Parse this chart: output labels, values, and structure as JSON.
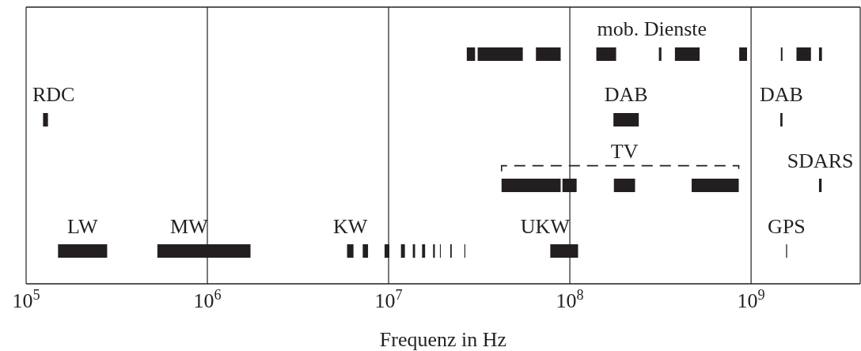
{
  "chart_data": {
    "type": "bar",
    "orientation": "horizontal",
    "xlabel": "Frequenz in Hz",
    "log": "x",
    "grid": "x",
    "legend": false,
    "categories": [
      null,
      null,
      null,
      null
    ],
    "xlim": [
      100000,
      4000000000
    ],
    "xticks": [
      {
        "value": 100000,
        "label": "10$^{5}$"
      },
      {
        "value": 1000000,
        "label": "10$^{6}$"
      },
      {
        "value": 10000000,
        "label": "10$^{7}$"
      },
      {
        "value": 100000000,
        "label": "10$^{8}$"
      },
      {
        "value": 1000000000,
        "label": "10$^{9}$"
      }
    ],
    "series": [
      {
        "color": "#231f20",
        "values": [
          null,
          null,
          47000000,
          null
        ],
        "base": [
          null,
          null,
          42000000,
          null
        ]
      },
      {
        "color": "#231f20",
        "values": [
          null,
          null,
          18000000,
          null
        ],
        "base": [
          null,
          null,
          91000000,
          null
        ]
      },
      {
        "name": "TV",
        "line_style": "dashed",
        "color": "#231f20",
        "values": [
          null,
          null,
          54000000,
          null
        ],
        "base": [
          null,
          null,
          175000000,
          null
        ]
      },
      {
        "color": "#231f20",
        "values": [
          null,
          null,
          385000000,
          null
        ],
        "base": [
          null,
          null,
          470000000,
          null
        ]
      },
      {
        "color": "#231f20",
        "values": [
          3000000,
          null,
          null,
          null
        ],
        "base": [
          27000000,
          null,
          null,
          null
        ]
      },
      {
        "color": "#231f20",
        "values": [
          24000000,
          null,
          null,
          null
        ],
        "base": [
          31000000,
          null,
          null,
          null
        ]
      },
      {
        "color": "#231f20",
        "values": [
          24000000,
          null,
          null,
          null
        ],
        "base": [
          65000000,
          null,
          null,
          null
        ]
      },
      {
        "name": "mob. Dienste",
        "color": "#231f20",
        "values": [
          40000000,
          null,
          null,
          null
        ],
        "base": [
          140000000,
          null,
          null,
          null
        ]
      },
      {
        "color": "#231f20",
        "values": [
          10000000,
          null,
          null,
          null
        ],
        "base": [
          310000000,
          null,
          null,
          null
        ]
      },
      {
        "color": "#231f20",
        "values": [
          140000000,
          null,
          null,
          null
        ],
        "base": [
          380000000,
          null,
          null,
          null
        ]
      },
      {
        "color": "#231f20",
        "values": [
          90000000,
          null,
          null,
          null
        ],
        "base": [
          860000000,
          null,
          null,
          null
        ]
      },
      {
        "color": "#231f20",
        "values": [
          30000000,
          null,
          null,
          null
        ],
        "base": [
          1460000000,
          null,
          null,
          null
        ]
      },
      {
        "color": "#231f20",
        "values": [
          360000000,
          null,
          null,
          null
        ],
        "base": [
          1780000000,
          null,
          null,
          null
        ]
      },
      {
        "color": "#231f20",
        "values": [
          90000000,
          null,
          null,
          null
        ],
        "base": [
          2370000000,
          null,
          null,
          null
        ]
      },
      {
        "name": "RDC",
        "color": "#231f20",
        "values": [
          null,
          8000,
          null,
          null
        ],
        "base": [
          null,
          124000,
          null,
          null
        ]
      },
      {
        "name": "DAB",
        "color": "#231f20",
        "values": [
          null,
          66000000,
          null,
          null
        ],
        "base": [
          null,
          174000000,
          null,
          null
        ]
      },
      {
        "name": "DAB",
        "color": "#231f20",
        "values": [
          null,
          40000000,
          null,
          null
        ],
        "base": [
          null,
          1450000000,
          null,
          null
        ]
      },
      {
        "name": "SDARS",
        "color": "#231f20",
        "values": [
          null,
          null,
          80000000,
          null
        ],
        "base": [
          null,
          null,
          2370000000,
          null
        ]
      },
      {
        "name": "LW",
        "color": "#231f20",
        "values": [
          null,
          null,
          null,
          130000
        ],
        "base": [
          null,
          null,
          null,
          150000
        ]
      },
      {
        "name": "MW",
        "color": "#231f20",
        "values": [
          null,
          null,
          null,
          1200000
        ],
        "base": [
          null,
          null,
          null,
          530000
        ]
      },
      {
        "name": "KW",
        "color": "#231f20",
        "values": [
          null,
          null,
          null,
          500000
        ],
        "base": [
          null,
          null,
          null,
          5900000
        ]
      },
      {
        "color": "#231f20",
        "values": [
          null,
          null,
          null,
          500000
        ],
        "base": [
          null,
          null,
          null,
          7200000
        ]
      },
      {
        "color": "#231f20",
        "values": [
          null,
          null,
          null,
          600000
        ],
        "base": [
          null,
          null,
          null,
          9500000
        ]
      },
      {
        "color": "#231f20",
        "values": [
          null,
          null,
          null,
          600000
        ],
        "base": [
          null,
          null,
          null,
          11700000
        ]
      },
      {
        "color": "#231f20",
        "values": [
          null,
          null,
          null,
          400000
        ],
        "base": [
          null,
          null,
          null,
          13600000
        ]
      },
      {
        "color": "#231f20",
        "values": [
          null,
          null,
          null,
          600000
        ],
        "base": [
          null,
          null,
          null,
          15300000
        ]
      },
      {
        "color": "#231f20",
        "values": [
          null,
          null,
          null,
          400000
        ],
        "base": [
          null,
          null,
          null,
          17600000
        ]
      },
      {
        "color": "#231f20",
        "values": [
          null,
          null,
          null,
          200000
        ],
        "base": [
          null,
          null,
          null,
          19200000
        ]
      },
      {
        "color": "#231f20",
        "values": [
          null,
          null,
          null,
          400000
        ],
        "base": [
          null,
          null,
          null,
          21900000
        ]
      },
      {
        "color": "#231f20",
        "values": [
          null,
          null,
          null,
          300000
        ],
        "base": [
          null,
          null,
          null,
          26200000
        ]
      },
      {
        "name": "UKW",
        "color": "#231f20",
        "values": [
          null,
          null,
          null,
          33000000
        ],
        "base": [
          null,
          null,
          null,
          78000000
        ]
      },
      {
        "name": "GPS",
        "color": "#231f20",
        "values": [
          null,
          null,
          null,
          20000000
        ],
        "base": [
          null,
          null,
          null,
          1560000000
        ]
      }
    ]
  }
}
